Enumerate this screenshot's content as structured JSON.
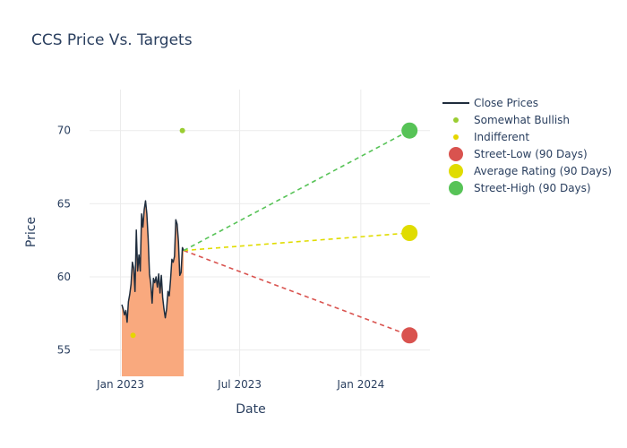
{
  "chart_data": {
    "type": "line",
    "title": "CCS Price Vs. Targets",
    "xlabel": "Date",
    "ylabel": "Price",
    "xlim": [
      "2022-11-15",
      "2024-04-15"
    ],
    "ylim": [
      53.2,
      72.8
    ],
    "x_ticks": [
      {
        "value": "2023-01-01",
        "label": "Jan 2023"
      },
      {
        "value": "2023-07-01",
        "label": "Jul 2023"
      },
      {
        "value": "2024-01-01",
        "label": "Jan 2024"
      }
    ],
    "y_ticks": [
      55,
      60,
      65,
      70
    ],
    "grid": true,
    "legend_position": "right",
    "close_prices": {
      "name": "Close Prices",
      "line_color": "#1f2d3d",
      "fill_color": "#f9a97e",
      "points": [
        [
          "2023-01-03",
          58.1
        ],
        [
          "2023-01-05",
          57.8
        ],
        [
          "2023-01-07",
          57.4
        ],
        [
          "2023-01-09",
          57.7
        ],
        [
          "2023-01-11",
          56.9
        ],
        [
          "2023-01-13",
          58.3
        ],
        [
          "2023-01-15",
          58.8
        ],
        [
          "2023-01-17",
          59.5
        ],
        [
          "2023-01-19",
          61.0
        ],
        [
          "2023-01-21",
          60.6
        ],
        [
          "2023-01-23",
          59.0
        ],
        [
          "2023-01-25",
          63.2
        ],
        [
          "2023-01-27",
          60.4
        ],
        [
          "2023-01-29",
          61.5
        ],
        [
          "2023-01-31",
          60.4
        ],
        [
          "2023-02-02",
          64.3
        ],
        [
          "2023-02-04",
          63.4
        ],
        [
          "2023-02-06",
          64.6
        ],
        [
          "2023-02-08",
          65.2
        ],
        [
          "2023-02-10",
          64.3
        ],
        [
          "2023-02-12",
          62.6
        ],
        [
          "2023-02-14",
          60.2
        ],
        [
          "2023-02-16",
          59.5
        ],
        [
          "2023-02-18",
          58.2
        ],
        [
          "2023-02-20",
          59.9
        ],
        [
          "2023-02-22",
          59.6
        ],
        [
          "2023-02-24",
          60.0
        ],
        [
          "2023-02-26",
          59.3
        ],
        [
          "2023-02-28",
          60.2
        ],
        [
          "2023-03-02",
          58.9
        ],
        [
          "2023-03-04",
          60.1
        ],
        [
          "2023-03-06",
          58.6
        ],
        [
          "2023-03-08",
          57.8
        ],
        [
          "2023-03-10",
          57.2
        ],
        [
          "2023-03-12",
          57.8
        ],
        [
          "2023-03-14",
          59.0
        ],
        [
          "2023-03-16",
          58.7
        ],
        [
          "2023-03-18",
          59.8
        ],
        [
          "2023-03-20",
          61.2
        ],
        [
          "2023-03-22",
          61.0
        ],
        [
          "2023-03-24",
          61.4
        ],
        [
          "2023-03-26",
          63.9
        ],
        [
          "2023-03-28",
          63.6
        ],
        [
          "2023-03-30",
          62.4
        ],
        [
          "2023-04-01",
          60.1
        ],
        [
          "2023-04-03",
          60.3
        ],
        [
          "2023-04-05",
          62.0
        ],
        [
          "2023-04-07",
          61.8
        ]
      ]
    },
    "ratings": [
      {
        "name": "Somewhat Bullish",
        "date": "2023-04-05",
        "value": 70,
        "color": "#9acd32"
      },
      {
        "name": "Indifferent",
        "date": "2023-01-20",
        "value": 56,
        "color": "#e5d600"
      }
    ],
    "targets": {
      "start": {
        "date": "2023-04-07",
        "value": 61.8
      },
      "end_date": "2024-03-15",
      "lines": [
        {
          "name": "Street-Low (90 Days)",
          "value": 56,
          "color": "#d9534f"
        },
        {
          "name": "Average Rating (90 Days)",
          "value": 63,
          "color": "#e0dc00"
        },
        {
          "name": "Street-High (90 Days)",
          "value": 70,
          "color": "#57c357"
        }
      ]
    }
  }
}
